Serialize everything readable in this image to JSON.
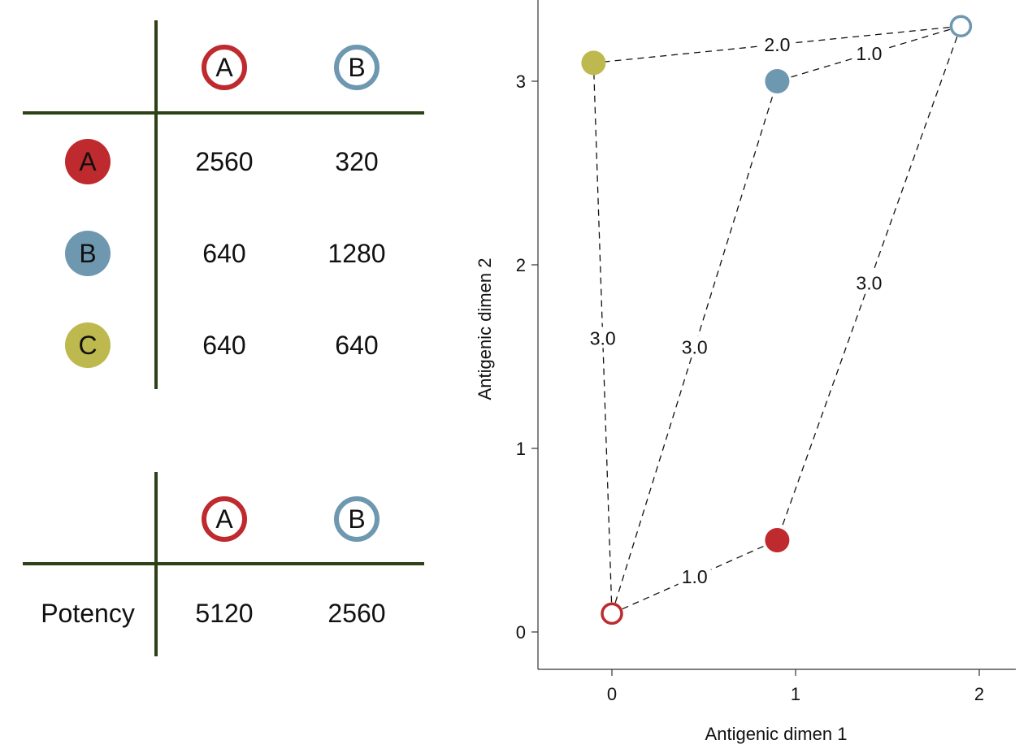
{
  "colors": {
    "A": "#be2a2e",
    "B": "#6e97b0",
    "C": "#bdb94f",
    "grid_line": "#2d4117",
    "axis": "#333333"
  },
  "table_titer": {
    "columns": [
      {
        "label": "A",
        "key": "A"
      },
      {
        "label": "B",
        "key": "B"
      }
    ],
    "rows": [
      {
        "label": "A",
        "key": "A",
        "values": [
          "2560",
          "320"
        ]
      },
      {
        "label": "B",
        "key": "B",
        "values": [
          "640",
          "1280"
        ]
      },
      {
        "label": "C",
        "key": "C",
        "values": [
          "640",
          "640"
        ]
      }
    ]
  },
  "table_potency": {
    "columns": [
      {
        "label": "A",
        "key": "A"
      },
      {
        "label": "B",
        "key": "B"
      }
    ],
    "row_label": "Potency",
    "values": [
      "5120",
      "2560"
    ]
  },
  "chart_data": {
    "type": "scatter",
    "xlabel": "Antigenic dimen 1",
    "ylabel": "Antigenic dimen 2",
    "xlim": [
      -0.4,
      2.2
    ],
    "ylim": [
      -0.2,
      3.45
    ],
    "xticks": [
      "0",
      "1",
      "2"
    ],
    "yticks": [
      "0",
      "1",
      "2",
      "3"
    ],
    "grid": false,
    "points": [
      {
        "id": "A",
        "kind": "antigen",
        "x": 0.9,
        "y": 0.5
      },
      {
        "id": "B",
        "kind": "antigen",
        "x": 0.9,
        "y": 3.0
      },
      {
        "id": "C",
        "kind": "antigen",
        "x": -0.1,
        "y": 3.1
      },
      {
        "id": "A",
        "kind": "serum",
        "x": 0.0,
        "y": 0.1
      },
      {
        "id": "B",
        "kind": "serum",
        "x": 1.9,
        "y": 3.3
      }
    ],
    "edges": [
      {
        "from": "A-serum",
        "to": "A-antigen",
        "label": "1.0"
      },
      {
        "from": "A-serum",
        "to": "B-antigen",
        "label": "3.0"
      },
      {
        "from": "A-serum",
        "to": "C-antigen",
        "label": "3.0"
      },
      {
        "from": "B-serum",
        "to": "A-antigen",
        "label": "3.0"
      },
      {
        "from": "B-serum",
        "to": "B-antigen",
        "label": "1.0"
      },
      {
        "from": "B-serum",
        "to": "C-antigen",
        "label": "2.0"
      }
    ]
  }
}
